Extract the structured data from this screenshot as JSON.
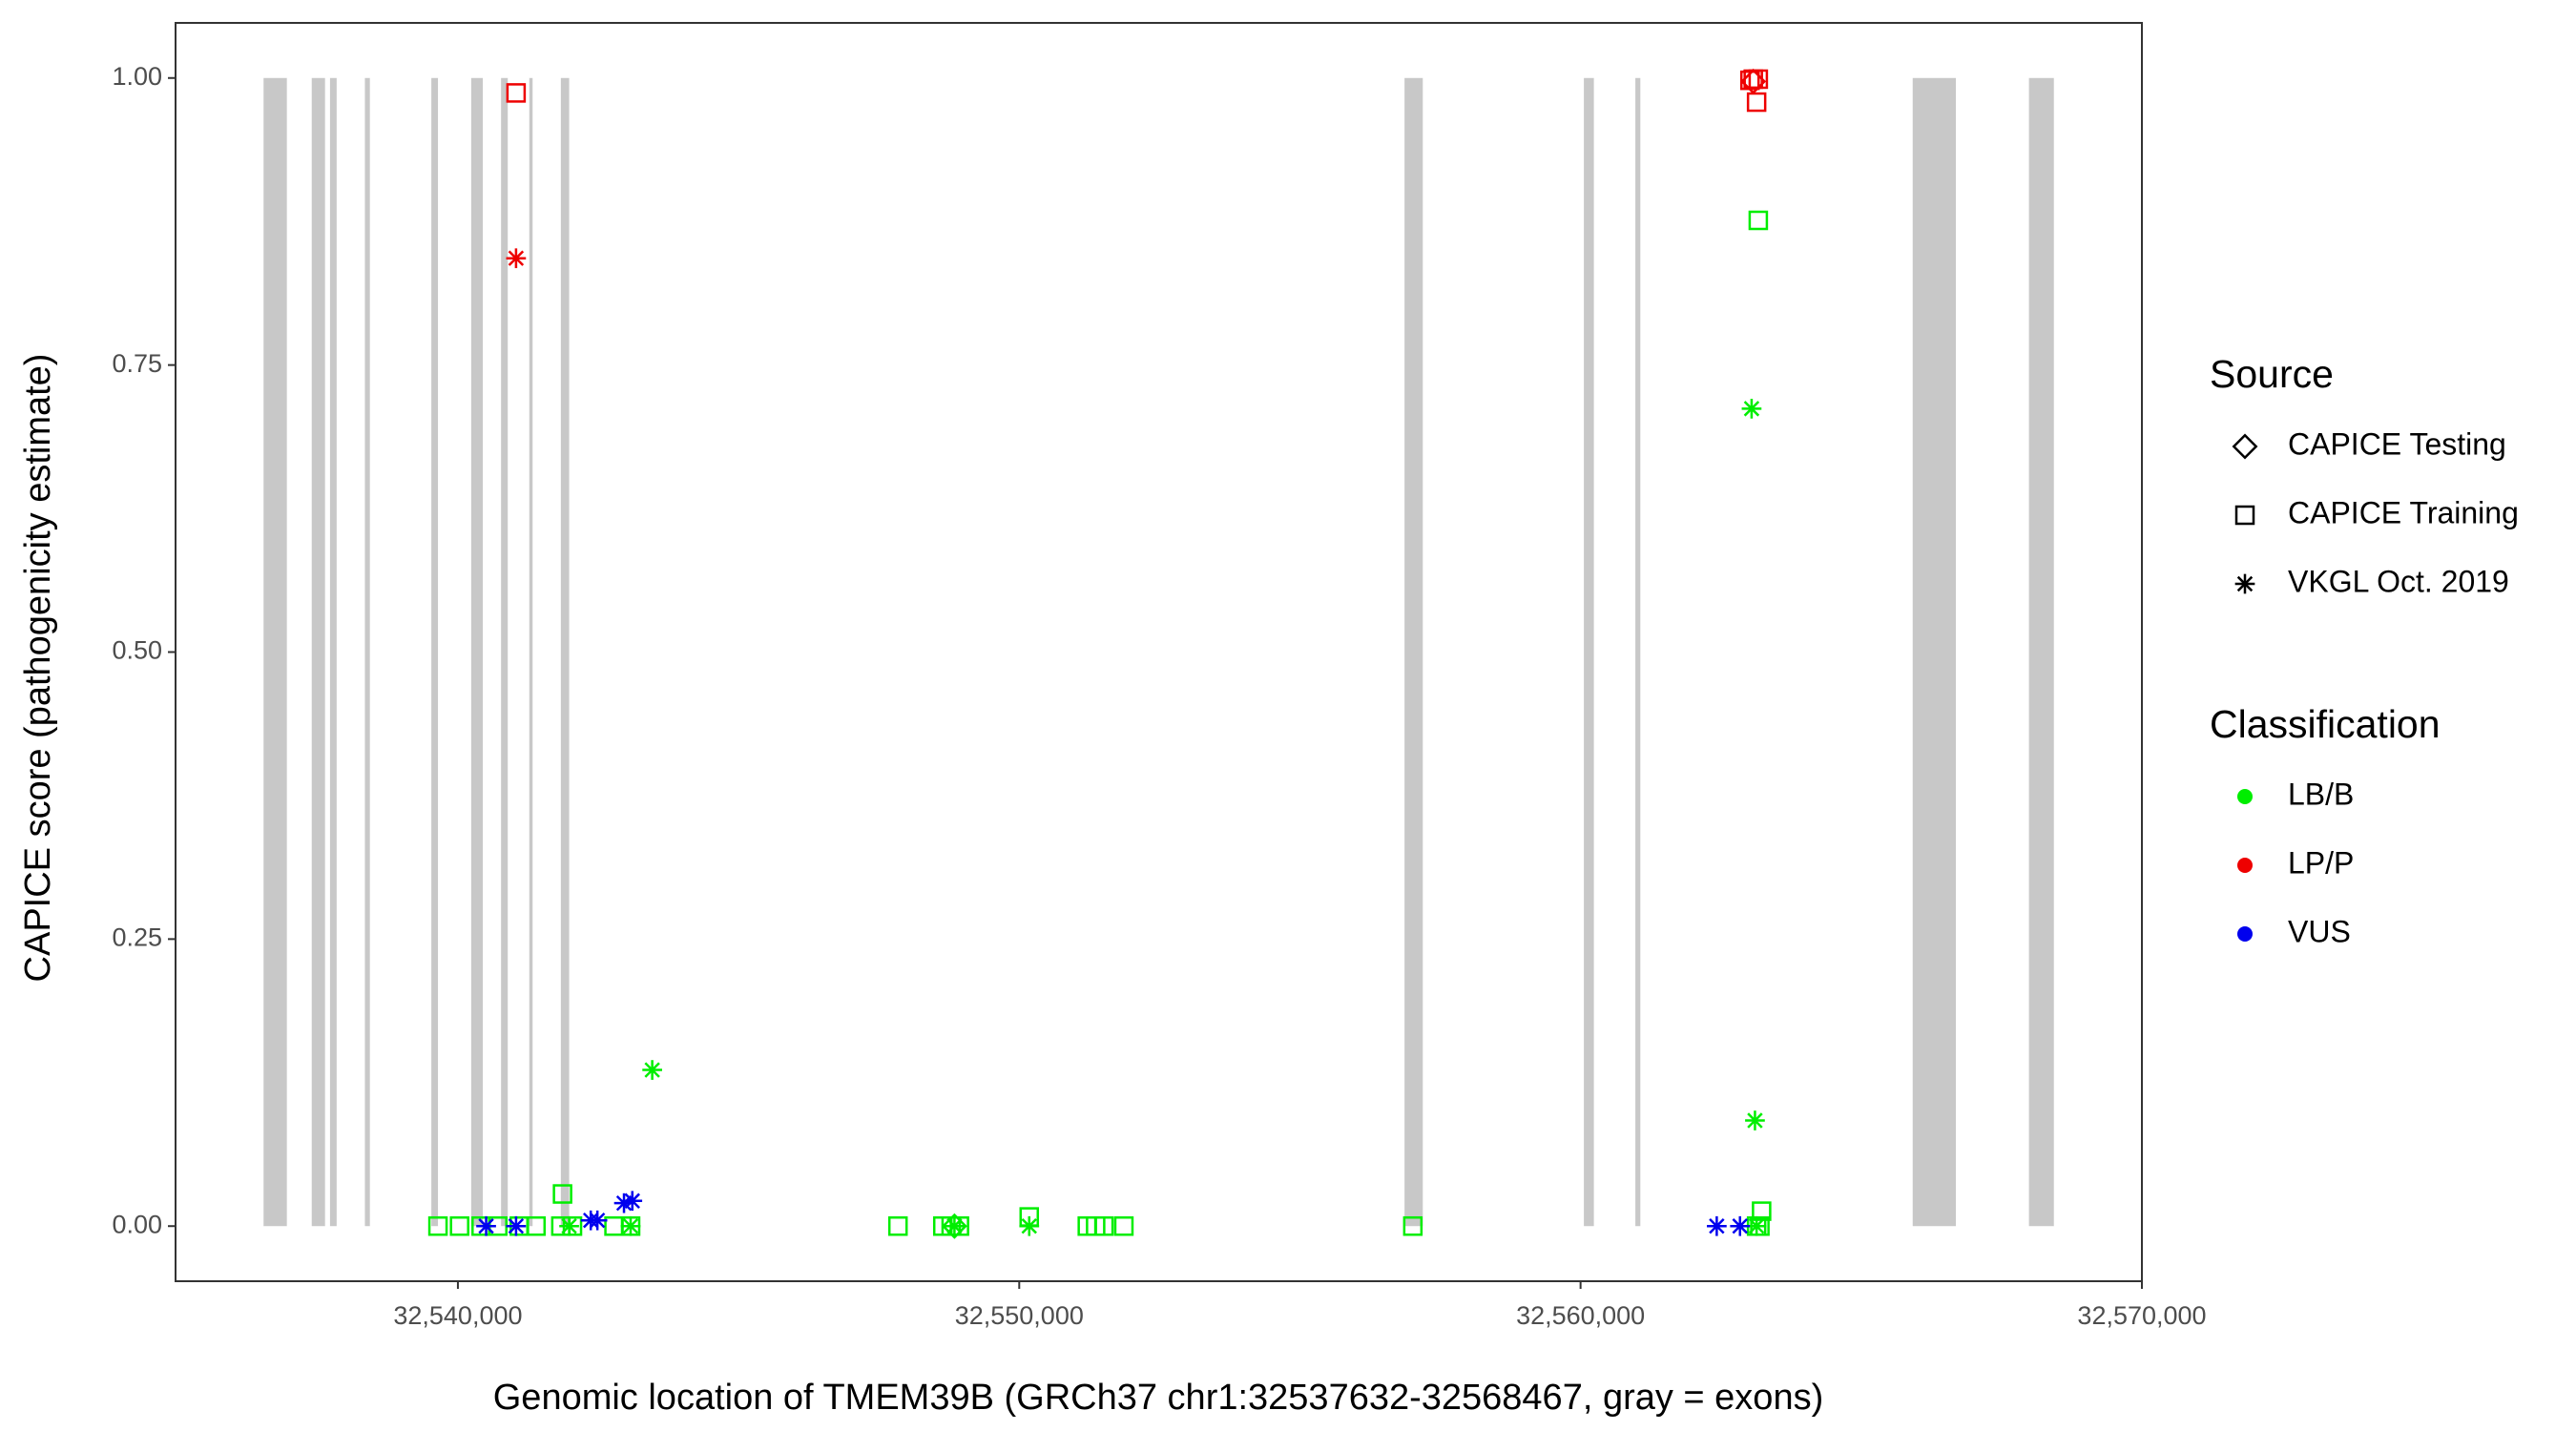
{
  "chart_data": {
    "type": "scatter",
    "x_label": "Genomic location of TMEM39B (GRCh37 chr1:32537632-32568467, gray = exons)",
    "y_label": "CAPICE score (pathogenicity estimate)",
    "xlim": [
      32534970,
      32570000
    ],
    "ylim": [
      -0.048,
      1.048
    ],
    "xticks": [
      {
        "value": 32540000,
        "label": "32,540,000"
      },
      {
        "value": 32550000,
        "label": "32,550,000"
      },
      {
        "value": 32560000,
        "label": "32,560,000"
      },
      {
        "value": 32570000,
        "label": "32,570,000"
      }
    ],
    "yticks": [
      {
        "value": 0,
        "label": "0.00"
      },
      {
        "value": 0.25,
        "label": "0.25"
      },
      {
        "value": 0.5,
        "label": "0.50"
      },
      {
        "value": 0.75,
        "label": "0.75"
      },
      {
        "value": 1,
        "label": "1.00"
      }
    ],
    "exon_color": "#c8c8c8",
    "exons": [
      [
        32536538,
        32536953
      ],
      [
        32537396,
        32537633
      ],
      [
        32537722,
        32537840
      ],
      [
        32538343,
        32538432
      ],
      [
        32539527,
        32539645
      ],
      [
        32540237,
        32540444
      ],
      [
        32540769,
        32540888
      ],
      [
        32541272,
        32541331
      ],
      [
        32541834,
        32541982
      ],
      [
        32556864,
        32557189
      ],
      [
        32560059,
        32560237
      ],
      [
        32560976,
        32561065
      ],
      [
        32565917,
        32566686
      ],
      [
        32567988,
        32568432
      ]
    ],
    "sources": {
      "title": "Source",
      "items": [
        {
          "name": "CAPICE Testing",
          "shape": "diamond"
        },
        {
          "name": "CAPICE Training",
          "shape": "square"
        },
        {
          "name": "VKGL Oct. 2019",
          "shape": "asterisk"
        }
      ]
    },
    "classifications": {
      "title": "Classification",
      "items": [
        {
          "name": "LB/B",
          "color": "#00ee00"
        },
        {
          "name": "LP/P",
          "color": "#ee0000"
        },
        {
          "name": "VUS",
          "color": "#0000ee"
        }
      ]
    },
    "series": [
      {
        "source": 1,
        "classification": 0,
        "x": [
          32539645,
          32540030,
          32540414,
          32540710,
          32541095,
          32541391,
          32541834,
          32541864,
          32542041,
          32542781,
          32543077,
          32547840,
          32548639,
          32548787,
          32548935,
          32550178,
          32551213,
          32551361,
          32551509,
          32551864,
          32557012,
          32563136,
          32563195,
          32563225,
          32563166
        ],
        "values": [
          0,
          0,
          0,
          0,
          0,
          0,
          0,
          0.028,
          0,
          0,
          0,
          0,
          0,
          0,
          0,
          0.008,
          0,
          0,
          0,
          0,
          0,
          0,
          0,
          0.013,
          0.876
        ]
      },
      {
        "source": 1,
        "classification": 1,
        "x": [
          32541036,
          32563136,
          32563018,
          32563077,
          32563166
        ],
        "values": [
          0.987,
          0.979,
          0.998,
          0.999,
          0.999
        ]
      },
      {
        "source": 2,
        "classification": 0,
        "x": [
          32543462,
          32563047,
          32563107,
          32543077,
          32550178,
          32548846,
          32563136,
          32541982
        ],
        "values": [
          0.136,
          0.712,
          0.092,
          0,
          0,
          0,
          0,
          0
        ]
      },
      {
        "source": 2,
        "classification": 2,
        "x": [
          32540503,
          32541036,
          32542367,
          32542485,
          32542959,
          32543107,
          32562426,
          32562840
        ],
        "values": [
          0,
          0,
          0.005,
          0.005,
          0.02,
          0.022,
          0,
          0
        ]
      },
      {
        "source": 2,
        "classification": 1,
        "x": [
          32541036
        ],
        "values": [
          0.843
        ]
      },
      {
        "source": 0,
        "classification": 1,
        "x": [
          32563077
        ],
        "values": [
          0.997
        ]
      },
      {
        "source": 0,
        "classification": 0,
        "x": [
          32548846
        ],
        "values": [
          0
        ]
      }
    ]
  }
}
